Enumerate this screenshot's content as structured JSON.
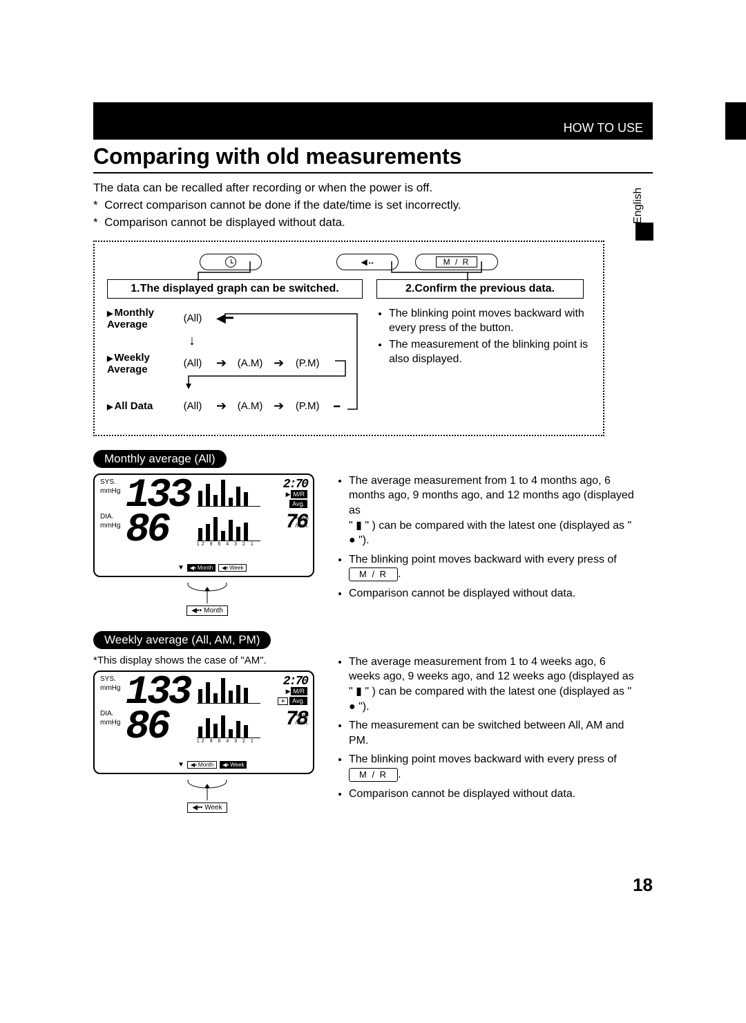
{
  "header": {
    "section_label": "HOW TO USE",
    "language": "English"
  },
  "title": "Comparing with old measurements",
  "intro": {
    "line1": "The data can be recalled after recording or when the power is off.",
    "note1": "Correct comparison cannot be done if the date/time is set incorrectly.",
    "note2": "Comparison cannot be displayed without data."
  },
  "buttons": {
    "mr": "M / R"
  },
  "boxed": {
    "header1": "1.The displayed graph can be switched.",
    "header2": "2.Confirm the previous data.",
    "rows": {
      "monthly": {
        "label": "Monthly Average",
        "c1": "(All)"
      },
      "weekly": {
        "label": "Weekly Average",
        "c1": "(All)",
        "c2": "(A.M)",
        "c3": "(P.M)"
      },
      "alldata": {
        "label": "All Data",
        "c1": "(All)",
        "c2": "(A.M)",
        "c3": "(P.M)"
      }
    },
    "right_bullets": {
      "b1": "The blinking point moves backward with every press of the button.",
      "b2": "The measurement of the blinking point is also displayed."
    }
  },
  "monthly": {
    "pill": "Monthly average (All)",
    "lcd": {
      "sys_label": "SYS.",
      "dia_label": "DIA.",
      "unit": "mmHg",
      "sys": "133",
      "dia": "86",
      "time": "2:70",
      "mr_badge": "M/R",
      "avg_badge": "Avg.",
      "pulse_label": "Pulse",
      "per_min": "/min.",
      "pulse": "76",
      "ticks": "12 9 6 4 3 2 1",
      "strip1": "Month",
      "strip2": "Week",
      "graph": {
        "heights_pct": [
          55,
          80,
          40,
          95,
          30,
          70,
          50
        ]
      },
      "graph2": {
        "heights_pct": [
          45,
          60,
          85,
          35,
          75,
          50,
          65
        ]
      }
    },
    "callout": "Month",
    "bullets": {
      "b1a": "The average measurement from 1 to 4 months ago, 6 months ago, 9 months ago, and 12 months ago (displayed as",
      "b1b": "\" ▮ \" ) can be compared with the latest one (displayed as \" ● \").",
      "b2a": "The blinking point moves backward with every press of ",
      "b2b": ".",
      "b3": "Comparison cannot be displayed without data."
    }
  },
  "weekly": {
    "pill": "Weekly average (All, AM, PM)",
    "note": "*This display shows the case of \"AM\".",
    "lcd": {
      "sys_label": "SYS.",
      "dia_label": "DIA.",
      "unit": "mmHg",
      "sys": "133",
      "dia": "86",
      "time": "2:70",
      "mr_badge": "M/R",
      "avg_badge": "Avg.",
      "am_badge": "AM",
      "pulse_label": "Pulse",
      "per_min": "/min.",
      "pulse": "78",
      "ticks": "12 9 6 4 3 2 1",
      "strip1": "Month",
      "strip2": "Week",
      "graph": {
        "heights_pct": [
          50,
          75,
          35,
          90,
          45,
          65,
          55
        ]
      },
      "graph2": {
        "heights_pct": [
          40,
          70,
          50,
          80,
          30,
          60,
          45
        ]
      }
    },
    "callout": "Week",
    "bullets": {
      "b1a": "The average measurement from 1 to 4 weeks ago, 6 weeks ago, 9 weeks ago, and 12 weeks ago (displayed as \" ▮ \" ) can be compared with the latest one (displayed as \" ● \").",
      "b2": "The measurement can be switched between All, AM and PM.",
      "b3a": "The blinking point moves backward with every press of ",
      "b3b": ".",
      "b4": "Comparison cannot be displayed without data."
    }
  },
  "page_number": "18"
}
